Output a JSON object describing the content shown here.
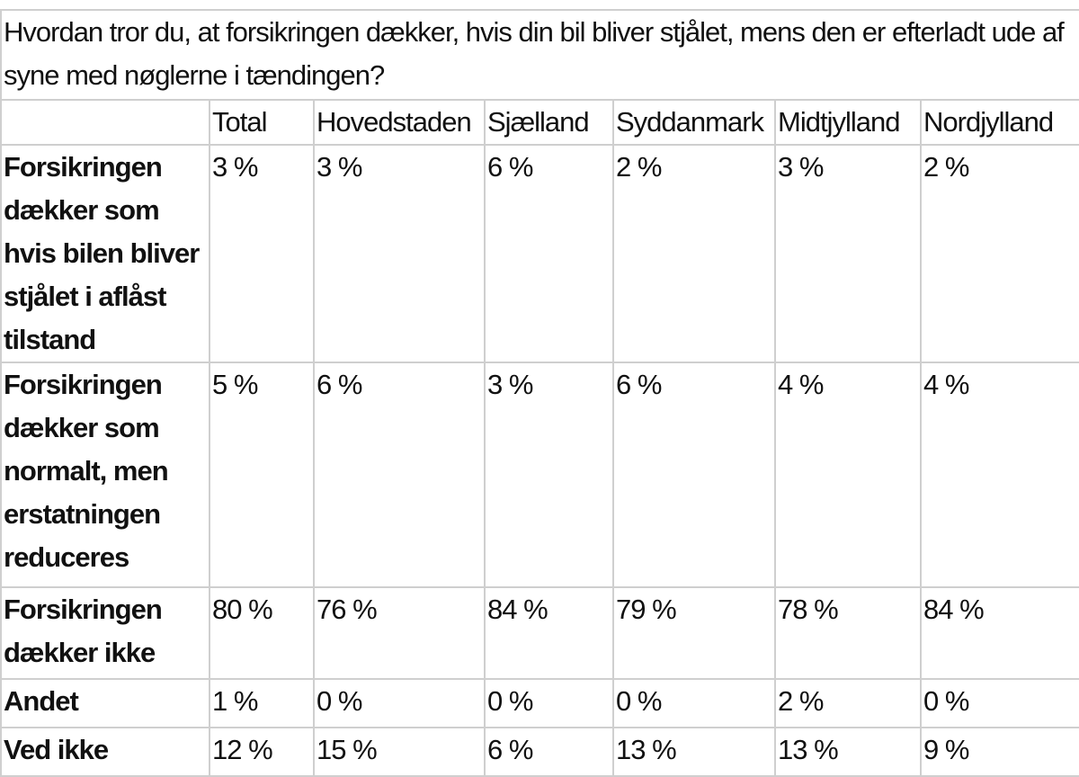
{
  "question": "Hvordan tror du, at forsikringen dækker, hvis din bil bliver stjålet, mens den er efterladt ude af syne med nøglerne i tændingen?",
  "columns": [
    "Total",
    "Hovedstaden",
    "Sjælland",
    "Syddanmark",
    "Midtjylland",
    "Nordjylland"
  ],
  "rows": [
    {
      "label": "Forsikringen dækker som hvis bilen bliver stjålet i aflåst tilstand",
      "values": [
        "3 %",
        "3 %",
        "6 %",
        "2 %",
        "3 %",
        "2 %"
      ]
    },
    {
      "label": "Forsikringen dækker som normalt, men erstatningen reduceres",
      "values": [
        "5 %",
        "6 %",
        "3 %",
        "6 %",
        "4 %",
        "4 %"
      ]
    },
    {
      "label": "Forsikringen dækker ikke",
      "values": [
        "80 %",
        "76 %",
        "84 %",
        "79 %",
        "78 %",
        "84 %"
      ]
    },
    {
      "label": "Andet",
      "values": [
        "1 %",
        "0 %",
        "0 %",
        "0 %",
        "2 %",
        "0 %"
      ]
    },
    {
      "label": "Ved ikke",
      "values": [
        "12 %",
        "15 %",
        "6 %",
        "13 %",
        "13 %",
        "9 %"
      ]
    }
  ]
}
